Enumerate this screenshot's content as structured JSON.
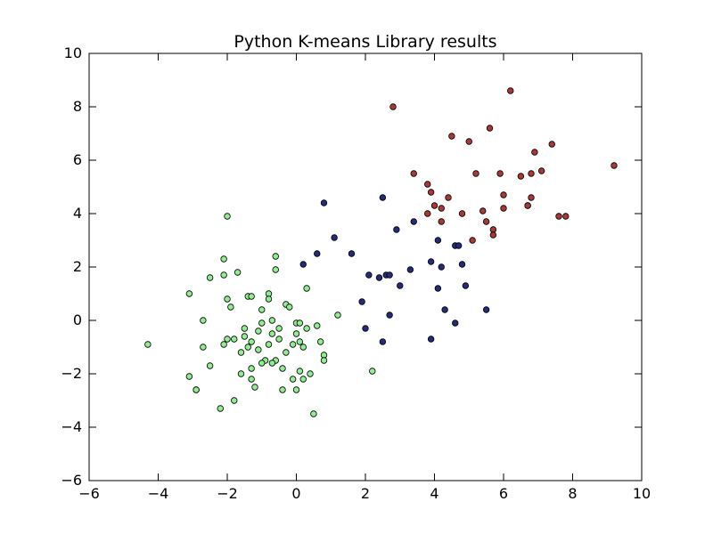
{
  "chart_data": {
    "type": "scatter",
    "title": "Python K-means Library results",
    "xlabel": "",
    "ylabel": "",
    "xlim": [
      -6,
      10
    ],
    "ylim": [
      -6,
      10
    ],
    "x_ticks": [
      -6,
      -4,
      -2,
      0,
      2,
      4,
      6,
      8,
      10
    ],
    "y_ticks": [
      -6,
      -4,
      -2,
      0,
      2,
      4,
      6,
      8,
      10
    ],
    "grid": false,
    "legend": "none",
    "x_tick_labels": [
      "−6",
      "−4",
      "−2",
      "0",
      "2",
      "4",
      "6",
      "8",
      "10"
    ],
    "y_tick_labels": [
      "−6",
      "−4",
      "−2",
      "0",
      "2",
      "4",
      "6",
      "8",
      "10"
    ],
    "colors": {
      "series_a": "#8fee8f",
      "series_b": "#262a7a",
      "series_c": "#a83838",
      "edge": "#000000",
      "background": "#ffffff",
      "frame": "#000000"
    },
    "series": [
      {
        "color": "#8fee8f",
        "points": [
          [
            -4.3,
            -0.9
          ],
          [
            -3.1,
            1.0
          ],
          [
            -3.1,
            -2.1
          ],
          [
            -2.9,
            -2.6
          ],
          [
            -2.7,
            0.0
          ],
          [
            -2.7,
            -1.0
          ],
          [
            -2.5,
            1.6
          ],
          [
            -2.5,
            -1.7
          ],
          [
            -2.2,
            -3.3
          ],
          [
            -2.1,
            1.7
          ],
          [
            -2.1,
            2.3
          ],
          [
            -2.1,
            -0.9
          ],
          [
            -2.0,
            3.9
          ],
          [
            -2.0,
            0.8
          ],
          [
            -2.0,
            -0.7
          ],
          [
            -1.9,
            0.5
          ],
          [
            -1.8,
            -0.7
          ],
          [
            -1.8,
            -3.0
          ],
          [
            -1.7,
            1.8
          ],
          [
            -1.6,
            -1.2
          ],
          [
            -1.5,
            -0.6
          ],
          [
            -1.5,
            -0.3
          ],
          [
            -1.4,
            0.9
          ],
          [
            -1.4,
            -1.0
          ],
          [
            -1.3,
            -1.8
          ],
          [
            -1.3,
            -0.8
          ],
          [
            -1.3,
            0.9
          ],
          [
            -1.2,
            -2.5
          ],
          [
            -1.1,
            -0.4
          ],
          [
            -1.1,
            -1.1
          ],
          [
            -1.0,
            0.4
          ],
          [
            -1.0,
            -0.1
          ],
          [
            -0.9,
            -1.5
          ],
          [
            -0.8,
            1.0
          ],
          [
            -0.8,
            0.8
          ],
          [
            -0.8,
            -0.9
          ],
          [
            -0.7,
            0.0
          ],
          [
            -0.7,
            -0.5
          ],
          [
            -0.6,
            2.4
          ],
          [
            -0.6,
            1.9
          ],
          [
            -0.6,
            -1.5
          ],
          [
            -0.5,
            -0.3
          ],
          [
            -0.5,
            -0.7
          ],
          [
            -0.4,
            -1.8
          ],
          [
            -0.4,
            -2.6
          ],
          [
            -0.3,
            0.6
          ],
          [
            -0.3,
            -1.2
          ],
          [
            -0.2,
            0.5
          ],
          [
            -0.1,
            -0.9
          ],
          [
            -0.1,
            -2.2
          ],
          [
            0.0,
            -0.1
          ],
          [
            0.0,
            -0.5
          ],
          [
            0.0,
            -2.6
          ],
          [
            0.1,
            -0.1
          ],
          [
            0.1,
            -0.8
          ],
          [
            0.1,
            -1.9
          ],
          [
            0.2,
            -1.0
          ],
          [
            0.2,
            -2.2
          ],
          [
            0.3,
            1.2
          ],
          [
            0.3,
            -0.3
          ],
          [
            0.4,
            -2.0
          ],
          [
            0.5,
            -3.5
          ],
          [
            0.6,
            -0.2
          ],
          [
            0.7,
            -0.8
          ],
          [
            0.8,
            -1.3
          ],
          [
            0.8,
            -1.5
          ],
          [
            1.2,
            0.2
          ],
          [
            2.2,
            -1.9
          ],
          [
            -1.6,
            -2.0
          ],
          [
            -1.3,
            -2.2
          ],
          [
            -0.7,
            -1.6
          ],
          [
            -1.0,
            -1.6
          ],
          [
            -2.9,
            -2.6
          ]
        ]
      },
      {
        "color": "#262a7a",
        "points": [
          [
            0.2,
            2.1
          ],
          [
            0.6,
            2.5
          ],
          [
            0.8,
            4.4
          ],
          [
            1.1,
            3.1
          ],
          [
            1.6,
            2.5
          ],
          [
            1.9,
            0.7
          ],
          [
            2.0,
            -0.3
          ],
          [
            2.1,
            1.7
          ],
          [
            2.4,
            1.6
          ],
          [
            2.5,
            4.6
          ],
          [
            2.5,
            -0.8
          ],
          [
            2.6,
            1.7
          ],
          [
            2.7,
            1.7
          ],
          [
            2.7,
            0.2
          ],
          [
            2.9,
            3.4
          ],
          [
            3.0,
            1.3
          ],
          [
            3.3,
            1.9
          ],
          [
            3.4,
            3.7
          ],
          [
            3.9,
            2.2
          ],
          [
            3.9,
            -0.7
          ],
          [
            4.1,
            3.0
          ],
          [
            4.1,
            1.2
          ],
          [
            4.2,
            2.0
          ],
          [
            4.3,
            0.4
          ],
          [
            4.6,
            2.8
          ],
          [
            4.6,
            -0.1
          ],
          [
            4.7,
            2.8
          ],
          [
            4.8,
            2.1
          ],
          [
            4.9,
            1.3
          ],
          [
            5.5,
            0.4
          ]
        ]
      },
      {
        "color": "#a83838",
        "points": [
          [
            2.8,
            8.0
          ],
          [
            3.4,
            5.5
          ],
          [
            3.8,
            5.1
          ],
          [
            3.8,
            4.0
          ],
          [
            3.9,
            4.8
          ],
          [
            4.0,
            4.3
          ],
          [
            4.2,
            4.2
          ],
          [
            4.2,
            3.7
          ],
          [
            4.4,
            4.6
          ],
          [
            4.5,
            6.9
          ],
          [
            4.8,
            4.0
          ],
          [
            5.0,
            6.7
          ],
          [
            5.1,
            3.0
          ],
          [
            5.2,
            5.5
          ],
          [
            5.4,
            4.1
          ],
          [
            5.5,
            3.7
          ],
          [
            5.6,
            7.2
          ],
          [
            5.7,
            3.4
          ],
          [
            5.7,
            3.2
          ],
          [
            5.9,
            5.5
          ],
          [
            6.0,
            4.7
          ],
          [
            6.0,
            4.2
          ],
          [
            6.2,
            8.6
          ],
          [
            6.5,
            5.4
          ],
          [
            6.7,
            4.3
          ],
          [
            6.7,
            4.3
          ],
          [
            6.8,
            4.6
          ],
          [
            6.8,
            5.5
          ],
          [
            6.9,
            6.3
          ],
          [
            7.1,
            5.6
          ],
          [
            7.4,
            6.6
          ],
          [
            7.6,
            3.9
          ],
          [
            7.8,
            3.9
          ],
          [
            9.2,
            5.8
          ]
        ]
      }
    ]
  }
}
